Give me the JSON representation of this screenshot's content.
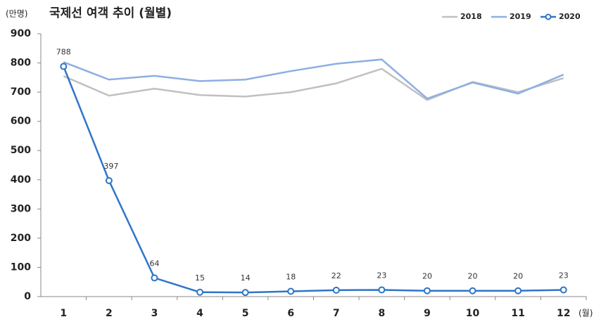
{
  "chart_data": {
    "type": "line",
    "title": "국제선 여객 추이 (월별)",
    "y_unit_label": "(만명)",
    "x_unit_label": "(월)",
    "categories": [
      "1",
      "2",
      "3",
      "4",
      "5",
      "6",
      "7",
      "8",
      "9",
      "10",
      "11",
      "12"
    ],
    "series": [
      {
        "name": "2018",
        "color": "#c0c0c0",
        "markers": false,
        "data_labels": false,
        "values": [
          755,
          688,
          712,
          690,
          685,
          700,
          730,
          780,
          673,
          735,
          700,
          748
        ]
      },
      {
        "name": "2019",
        "color": "#8eaee3",
        "markers": false,
        "data_labels": false,
        "values": [
          803,
          743,
          756,
          738,
          743,
          772,
          797,
          812,
          678,
          733,
          695,
          760
        ]
      },
      {
        "name": "2020",
        "color": "#2e75c8",
        "markers": true,
        "data_labels": true,
        "values": [
          788,
          397,
          64,
          15,
          14,
          18,
          22,
          23,
          20,
          20,
          20,
          23
        ]
      }
    ],
    "ylim": [
      0,
      900
    ],
    "yticks": [
      0,
      100,
      200,
      300,
      400,
      500,
      600,
      700,
      800,
      900
    ],
    "grid": false,
    "legend": "top-right"
  }
}
